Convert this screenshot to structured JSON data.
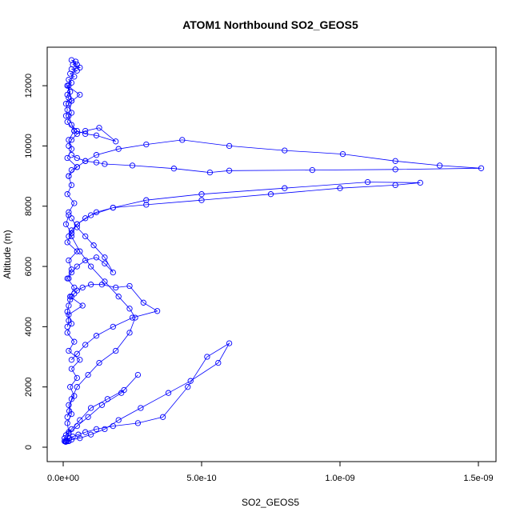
{
  "chart_data": {
    "type": "line",
    "title": "ATOM1 Northbound SO2_GEOS5",
    "xlabel": "SO2_GEOS5",
    "ylabel": "Altitude (m)",
    "xlim": [
      0,
      1.5e-09
    ],
    "ylim": [
      0,
      12800
    ],
    "x_ticks": [
      0,
      5e-10,
      1e-09,
      1.5e-09
    ],
    "x_tick_labels": [
      "0.0e+00",
      "5.0e-10",
      "1.0e-09",
      "1.5e-09"
    ],
    "y_ticks": [
      0,
      2000,
      4000,
      6000,
      8000,
      10000,
      12000
    ],
    "y_tick_labels": [
      "0",
      "2000",
      "4000",
      "6000",
      "8000",
      "10000",
      "12000"
    ],
    "grid": false,
    "colors": {
      "series": "#0000ff"
    },
    "series": [
      {
        "x": [
          5e-12,
          1.2e-11,
          2.2e-11,
          3.5e-11,
          5.5e-11,
          8e-11,
          1.2e-10,
          1.8e-10,
          2.7e-10,
          3.6e-10,
          4.5e-10,
          5.2e-10,
          6e-10,
          5.6e-10,
          4.6e-10,
          3.8e-10,
          2.8e-10,
          2e-10,
          1.5e-10,
          1e-10,
          6e-11,
          3e-11,
          2e-11,
          1.5e-11,
          1e-11,
          8e-12
        ],
        "y": [
          200,
          230,
          300,
          350,
          420,
          500,
          600,
          700,
          800,
          1000,
          2000,
          3000,
          3450,
          2800,
          2200,
          1800,
          1300,
          900,
          600,
          420,
          300,
          250,
          200,
          200,
          180,
          180
        ]
      },
      {
        "x": [
          1.5e-11,
          2.2e-11,
          3e-11,
          5e-11,
          9e-11,
          1.3e-10,
          1.9e-10,
          2.4e-10,
          2.6e-10,
          2.4e-10,
          2e-10,
          1.5e-10,
          1e-10,
          6e-11,
          3e-11
        ],
        "y": [
          1000,
          1200,
          1600,
          2000,
          2400,
          2800,
          3200,
          3800,
          4300,
          4600,
          5000,
          5500,
          6000,
          6500,
          7000
        ]
      },
      {
        "x": [
          1.5e-11,
          2e-11,
          1.5e-11,
          2e-11,
          2.5e-11,
          3e-11,
          4e-11,
          5e-11,
          7e-11,
          1e-10,
          1.4e-10,
          1.9e-10,
          2.4e-10,
          2.9e-10,
          3.4e-10,
          2.5e-10,
          1.8e-10,
          1.2e-10,
          8e-11,
          5e-11,
          3e-11
        ],
        "y": [
          4000,
          4200,
          4500,
          4700,
          4900,
          5000,
          5100,
          5200,
          5300,
          5400,
          5400,
          5300,
          5350,
          4800,
          4520,
          4300,
          4000,
          3700,
          3400,
          3100,
          2900
        ]
      },
      {
        "x": [
          2e-11,
          3e-11,
          5e-11,
          8e-11,
          1.2e-10,
          1.5e-10,
          1.8e-10,
          1.5e-10,
          1.1e-10,
          8e-11,
          5e-11,
          3e-11
        ],
        "y": [
          5600,
          5800,
          6000,
          6200,
          6300,
          6100,
          5800,
          6300,
          6700,
          7000,
          7300,
          7600
        ]
      },
      {
        "x": [
          2e-11,
          3e-11,
          5e-11,
          8e-11,
          1.2e-10,
          1.8e-10,
          3e-10,
          5e-10,
          7.5e-10,
          1e-09,
          1.2e-09,
          1.29e-09,
          1.1e-09,
          8e-10,
          5e-10,
          3e-10,
          1.8e-10,
          1e-10,
          5e-11,
          3e-11
        ],
        "y": [
          7000,
          7200,
          7400,
          7600,
          7800,
          7950,
          8050,
          8200,
          8400,
          8600,
          8700,
          8780,
          8800,
          8600,
          8400,
          8200,
          7950,
          7700,
          7400,
          7100
        ]
      },
      {
        "x": [
          2e-11,
          3e-11,
          5e-11,
          8e-11,
          1.2e-10,
          2e-10,
          3e-10,
          4.3e-10,
          6e-10,
          8e-10,
          1.01e-09,
          1.2e-09,
          1.36e-09,
          1.51e-09,
          1.2e-09,
          9e-10,
          6e-10,
          5.3e-10,
          4e-10,
          2.5e-10,
          1.5e-10,
          1.2e-10,
          8e-11,
          5e-11,
          3e-11
        ],
        "y": [
          9000,
          9200,
          9300,
          9500,
          9700,
          9900,
          10050,
          10200,
          10000,
          9850,
          9730,
          9500,
          9350,
          9260,
          9220,
          9200,
          9180,
          9120,
          9250,
          9350,
          9400,
          9450,
          9500,
          9600,
          9700
        ]
      },
      {
        "x": [
          2e-11,
          3e-11,
          5e-11,
          8e-11,
          1.3e-10,
          1.9e-10,
          1.2e-10,
          8e-11,
          5e-11,
          3e-11
        ],
        "y": [
          10000,
          10200,
          10400,
          10500,
          10600,
          10150,
          10350,
          10400,
          10500,
          10700
        ]
      },
      {
        "x": [
          1e-11,
          1.5e-11,
          1e-11,
          2e-11,
          1.5e-11,
          2.5e-11,
          1.5e-11,
          3e-11,
          2e-11,
          4e-11,
          2.5e-11,
          5e-11,
          3e-11,
          6e-11,
          3.5e-11,
          4.5e-11,
          3e-11,
          5e-11,
          2e-11,
          3e-11
        ],
        "y": [
          11000,
          11200,
          11400,
          11600,
          11700,
          11800,
          12000,
          12100,
          12200,
          12300,
          12400,
          12500,
          12550,
          12600,
          12700,
          12800,
          12850,
          12700,
          12000,
          11500
        ]
      },
      {
        "x": [
          1e-11,
          2e-11,
          1.5e-11,
          3e-11,
          2e-11,
          4e-11,
          2.5e-11,
          5e-11,
          3e-11,
          6e-11,
          2e-11,
          4e-11,
          1.5e-11,
          3e-11,
          2e-11,
          7e-11,
          2.5e-11,
          4e-11,
          1.5e-11,
          3e-11,
          2e-11,
          5e-11,
          1.5e-11,
          3e-11,
          1e-11,
          2e-11
        ],
        "y": [
          200,
          500,
          800,
          1100,
          1400,
          1700,
          2000,
          2300,
          2600,
          2900,
          3200,
          3500,
          3800,
          4100,
          4400,
          4700,
          5000,
          5300,
          5600,
          5900,
          6200,
          6500,
          6800,
          7100,
          7400,
          7700
        ]
      },
      {
        "x": [
          2e-11,
          4e-11,
          1.5e-11,
          3e-11,
          2e-11,
          5e-11,
          1.5e-11,
          3e-11,
          2e-11,
          4e-11,
          1.5e-11,
          3e-11,
          2e-11,
          6e-11,
          1.5e-11,
          3e-11,
          2e-11,
          4e-11
        ],
        "y": [
          7800,
          8100,
          8400,
          8700,
          9000,
          9300,
          9600,
          9900,
          10200,
          10500,
          10800,
          11100,
          11400,
          11700,
          12000,
          11500,
          11000,
          10500
        ]
      },
      {
        "x": [
          5e-12,
          1e-11,
          3e-11,
          6e-11,
          1e-10,
          1.6e-10,
          2.2e-10,
          2.7e-10,
          2.1e-10,
          1.4e-10,
          9e-11,
          5e-11,
          2e-11
        ],
        "y": [
          300,
          400,
          600,
          900,
          1300,
          1600,
          1900,
          2400,
          1800,
          1400,
          1000,
          700,
          450
        ]
      }
    ]
  }
}
